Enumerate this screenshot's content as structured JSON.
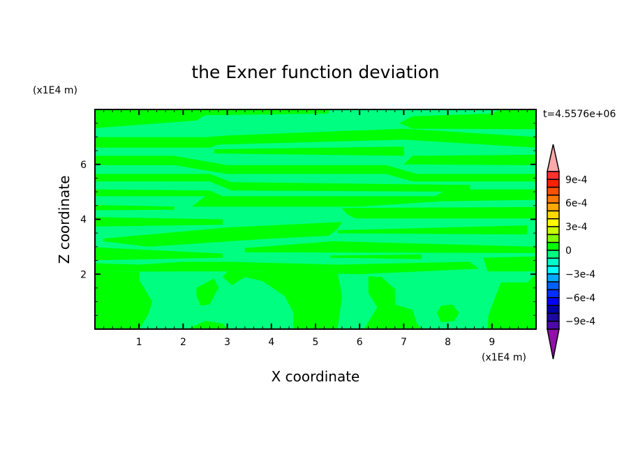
{
  "chart_data": {
    "type": "heatmap",
    "subtype": "filled-contour",
    "title": "the Exner function deviation",
    "xlabel": "X coordinate",
    "ylabel": "Z coordinate",
    "x_unit_label": "(x1E4 m)",
    "y_unit_label": "(x1E4 m)",
    "time_label": "t=4.5576e+06",
    "xlim": [
      0,
      10
    ],
    "ylim": [
      0,
      8
    ],
    "x_ticks": [
      "1",
      "2",
      "3",
      "4",
      "5",
      "6",
      "7",
      "8",
      "9"
    ],
    "y_ticks": [
      "2",
      "4",
      "6"
    ],
    "grid": false,
    "colorbar": {
      "levels_min": -0.001,
      "levels_max": 0.001,
      "step": 0.0001,
      "labels": [
        "9e-4",
        "6e-4",
        "3e-4",
        "0",
        "−3e-4",
        "−6e-4",
        "−9e-4"
      ],
      "label_values": [
        0.0009,
        0.0006,
        0.0003,
        0,
        -0.0003,
        -0.0006,
        -0.0009
      ],
      "colors_top_to_bottom": [
        "#ff3030",
        "#ff2000",
        "#ff5000",
        "#ff7800",
        "#ffa800",
        "#ffd800",
        "#ffff00",
        "#c8ff00",
        "#80ff00",
        "#00ff00",
        "#00ff80",
        "#00ffc8",
        "#00ffff",
        "#00a8ff",
        "#0060ff",
        "#0030ff",
        "#0000ff",
        "#0000a8",
        "#1c0aa0",
        "#4c0aa8"
      ],
      "over_color": "#ffaaaa",
      "under_color": "#9010a8"
    },
    "background_level_color": "#00ff80",
    "background_level_range": [
      -0.0001,
      0
    ],
    "regions_level_color": "#00ff00",
    "regions_level_range": [
      0,
      0.0001
    ],
    "regions": [
      [
        [
          0,
          8
        ],
        [
          5.3,
          8
        ],
        [
          5.3,
          7.85
        ],
        [
          2.5,
          7.79
        ],
        [
          2.3,
          7.6
        ],
        [
          0,
          7.32
        ]
      ],
      [
        [
          6.9,
          7.5
        ],
        [
          7.2,
          7.75
        ],
        [
          9.0,
          7.85
        ],
        [
          9.2,
          8
        ],
        [
          10,
          8
        ],
        [
          10,
          7.28
        ],
        [
          7.2,
          7.3
        ]
      ],
      [
        [
          0,
          6.99
        ],
        [
          2.5,
          6.99
        ],
        [
          3.0,
          7.05
        ],
        [
          7.0,
          7.3
        ],
        [
          10,
          7.0
        ],
        [
          10,
          6.61
        ],
        [
          7.0,
          6.9
        ],
        [
          2.8,
          6.72
        ],
        [
          2.6,
          6.61
        ],
        [
          0,
          6.61
        ]
      ],
      [
        [
          2.7,
          6.55
        ],
        [
          7.0,
          6.65
        ],
        [
          7.0,
          6.31
        ],
        [
          2.7,
          6.4
        ]
      ],
      [
        [
          0,
          6.31
        ],
        [
          1.8,
          6.31
        ],
        [
          3.0,
          5.97
        ],
        [
          6.6,
          5.97
        ],
        [
          7.3,
          5.65
        ],
        [
          10,
          5.65
        ],
        [
          10,
          5.38
        ],
        [
          7.2,
          5.38
        ],
        [
          6.6,
          5.65
        ],
        [
          3.0,
          5.65
        ],
        [
          1.8,
          5.97
        ],
        [
          0,
          5.97
        ]
      ],
      [
        [
          7.0,
          6.0
        ],
        [
          7.2,
          6.31
        ],
        [
          10,
          6.35
        ],
        [
          10,
          5.97
        ]
      ],
      [
        [
          0,
          5.65
        ],
        [
          2.6,
          5.65
        ],
        [
          3.1,
          5.35
        ],
        [
          8.5,
          5.25
        ],
        [
          8.5,
          5.0
        ],
        [
          3.1,
          5.05
        ],
        [
          2.6,
          5.38
        ],
        [
          0,
          5.38
        ]
      ],
      [
        [
          0,
          5.09
        ],
        [
          2.6,
          5.05
        ],
        [
          2.9,
          4.84
        ],
        [
          7.7,
          4.84
        ],
        [
          8.0,
          5.09
        ],
        [
          10,
          5.09
        ],
        [
          10,
          4.71
        ],
        [
          7.8,
          4.65
        ],
        [
          6.0,
          4.46
        ],
        [
          2.2,
          4.46
        ],
        [
          2.5,
          4.84
        ],
        [
          0,
          4.84
        ]
      ],
      [
        [
          0,
          4.52
        ],
        [
          1.8,
          4.46
        ],
        [
          1.8,
          4.35
        ],
        [
          0,
          4.33
        ]
      ],
      [
        [
          5.6,
          4.41
        ],
        [
          10,
          4.45
        ],
        [
          10,
          4.03
        ],
        [
          5.9,
          4.03
        ],
        [
          5.7,
          4.2
        ]
      ],
      [
        [
          0,
          4.08
        ],
        [
          2.9,
          4.0
        ],
        [
          2.9,
          3.8
        ],
        [
          0,
          3.74
        ]
      ],
      [
        [
          0.2,
          3.3
        ],
        [
          3.0,
          3.7
        ],
        [
          5.6,
          3.9
        ],
        [
          5.5,
          3.65
        ],
        [
          5.3,
          3.4
        ],
        [
          4.0,
          3.3
        ],
        [
          1.2,
          3.0
        ],
        [
          0.2,
          3.2
        ]
      ],
      [
        [
          5.5,
          3.6
        ],
        [
          9.8,
          3.78
        ],
        [
          9.8,
          3.45
        ],
        [
          5.5,
          3.49
        ]
      ],
      [
        [
          3.4,
          2.95
        ],
        [
          5.4,
          3.2
        ],
        [
          10,
          3.0
        ],
        [
          10,
          2.77
        ],
        [
          3.4,
          2.8
        ]
      ],
      [
        [
          0,
          2.98
        ],
        [
          2.9,
          2.75
        ],
        [
          2.9,
          2.6
        ],
        [
          0,
          2.51
        ]
      ],
      [
        [
          5.33,
          2.68
        ],
        [
          7.4,
          2.72
        ],
        [
          7.4,
          2.55
        ],
        [
          5.33,
          2.6
        ]
      ],
      [
        [
          0,
          2.4
        ],
        [
          1.0,
          2.35
        ],
        [
          2.0,
          2.45
        ],
        [
          3.0,
          2.45
        ],
        [
          5.5,
          2.35
        ],
        [
          8.5,
          2.45
        ],
        [
          8.7,
          2.2
        ],
        [
          6.0,
          2.0
        ],
        [
          3.8,
          2.1
        ],
        [
          2.0,
          2.1
        ],
        [
          0,
          2.09
        ]
      ],
      [
        [
          8.8,
          2.6
        ],
        [
          10,
          2.65
        ],
        [
          10,
          2.1
        ],
        [
          8.9,
          2.1
        ]
      ],
      [
        [
          0,
          2.09
        ],
        [
          1.0,
          2.09
        ],
        [
          1.0,
          1.8
        ],
        [
          1.3,
          1.0
        ],
        [
          1.2,
          0.5
        ],
        [
          1.0,
          0
        ],
        [
          0,
          0
        ]
      ],
      [
        [
          2.3,
          1.5
        ],
        [
          2.7,
          1.85
        ],
        [
          2.8,
          1.5
        ],
        [
          2.6,
          0.9
        ],
        [
          2.4,
          0.85
        ],
        [
          2.3,
          1.2
        ]
      ],
      [
        [
          3.0,
          2.1
        ],
        [
          5.5,
          2.09
        ],
        [
          5.6,
          1.2
        ],
        [
          5.5,
          0
        ],
        [
          4.5,
          0
        ],
        [
          4.5,
          0.6
        ],
        [
          4.3,
          1.2
        ],
        [
          3.8,
          1.75
        ],
        [
          3.4,
          1.9
        ],
        [
          3.1,
          1.6
        ],
        [
          2.9,
          1.9
        ]
      ],
      [
        [
          6.2,
          1.92
        ],
        [
          6.5,
          1.9
        ],
        [
          6.8,
          1.45
        ],
        [
          6.8,
          0.9
        ],
        [
          7.2,
          0.7
        ],
        [
          7.3,
          0.2
        ],
        [
          7.4,
          0
        ],
        [
          6.1,
          0
        ],
        [
          6.4,
          0.8
        ],
        [
          6.2,
          1.3
        ]
      ],
      [
        [
          7.75,
          0.6
        ],
        [
          7.85,
          0.85
        ],
        [
          8.1,
          0.9
        ],
        [
          8.25,
          0.6
        ],
        [
          8.15,
          0.3
        ],
        [
          7.85,
          0.25
        ]
      ],
      [
        [
          8.92,
          0.5
        ],
        [
          9.2,
          1.7
        ],
        [
          9.8,
          1.7
        ],
        [
          10,
          2.0
        ],
        [
          10,
          0
        ],
        [
          8.9,
          0
        ]
      ],
      [
        [
          2.1,
          0
        ],
        [
          2.5,
          0.3
        ],
        [
          2.9,
          0.2
        ],
        [
          3.0,
          0
        ]
      ]
    ]
  }
}
